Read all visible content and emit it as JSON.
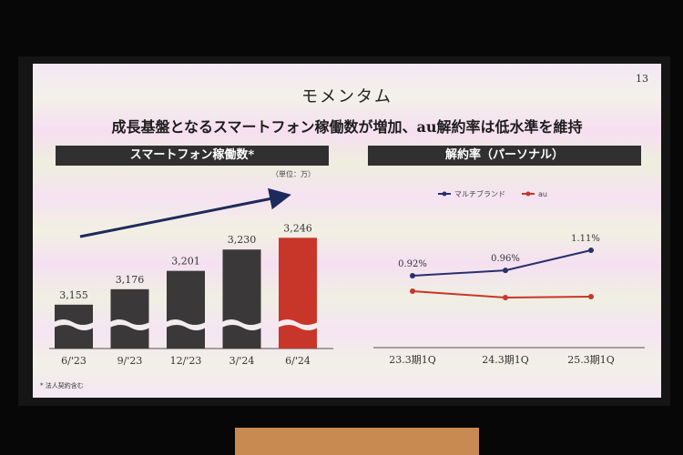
{
  "slide": {
    "page_number": "13",
    "title": "モメンタム",
    "subtitle": "成長基盤となるスマートフォン稼働数が増加、au解約率は低水準を維持",
    "footnote": "* 法人契約含む"
  },
  "chart_data": [
    {
      "type": "bar",
      "title": "スマートフォン稼働数*",
      "unit": "（単位：万）",
      "categories": [
        "6/'23",
        "9/'23",
        "12/'23",
        "3/'24",
        "6/'24"
      ],
      "values": [
        3155,
        3176,
        3201,
        3230,
        3246
      ],
      "value_labels": [
        "3,155",
        "3,176",
        "3,201",
        "3,230",
        "3,246"
      ],
      "highlight_index": 4,
      "colors": {
        "bar": "#3a3838",
        "highlight": "#c8362a"
      },
      "axis_break": true,
      "trend_arrow": true
    },
    {
      "type": "line",
      "title": "解約率（パーソナル）",
      "categories": [
        "23.3期1Q",
        "24.3期1Q",
        "25.3期1Q"
      ],
      "series": [
        {
          "name": "マルチブランド",
          "values": [
            0.92,
            0.96,
            1.11
          ],
          "labels": [
            "0.92%",
            "0.96%",
            "1.11%"
          ],
          "color": "#27306e"
        },
        {
          "name": "au",
          "color": "#c8362a"
        }
      ],
      "legend_position": "top"
    }
  ]
}
